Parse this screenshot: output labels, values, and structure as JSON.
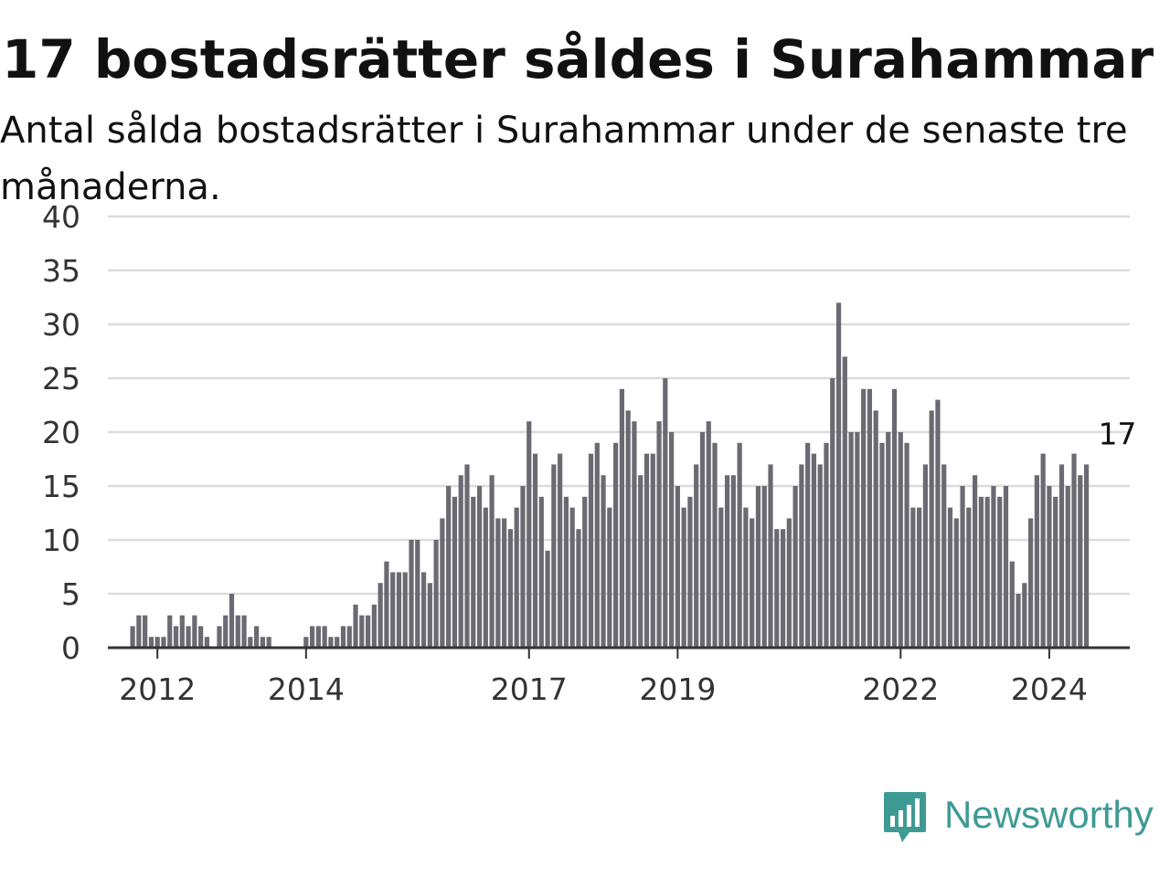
{
  "title": "17 bostadsrätter såldes i Surahammar",
  "subtitle": "Antal sålda bostadsrätter i Surahammar under de senaste tre månaderna.",
  "brand": {
    "name": "Newsworthy",
    "icon": "newsworthy-logo-icon",
    "color": "#3f9a94"
  },
  "chart_data": {
    "type": "bar",
    "xlabel": "",
    "ylabel": "",
    "ylim": [
      0,
      40
    ],
    "yticks": [
      0,
      5,
      10,
      15,
      20,
      25,
      30,
      35,
      40
    ],
    "xticks": [
      {
        "label": "2012",
        "date": "2012-01"
      },
      {
        "label": "2014",
        "date": "2014-01"
      },
      {
        "label": "2017",
        "date": "2017-01"
      },
      {
        "label": "2019",
        "date": "2019-01"
      },
      {
        "label": "2022",
        "date": "2022-01"
      },
      {
        "label": "2024",
        "date": "2024-01"
      }
    ],
    "grid": true,
    "bar_color": "#6b6a72",
    "highlight_color": "#17a39a",
    "x_start": "2011-05",
    "x_end": "2025-02",
    "start_month": "2011-09",
    "values": [
      2,
      3,
      3,
      1,
      1,
      1,
      3,
      2,
      3,
      2,
      3,
      2,
      1,
      0,
      2,
      3,
      5,
      3,
      3,
      1,
      2,
      1,
      1,
      0,
      0,
      0,
      0,
      0,
      1,
      2,
      2,
      2,
      1,
      1,
      2,
      2,
      4,
      3,
      3,
      4,
      6,
      8,
      7,
      7,
      7,
      10,
      10,
      7,
      6,
      10,
      12,
      15,
      14,
      16,
      17,
      14,
      15,
      13,
      16,
      12,
      12,
      11,
      13,
      15,
      21,
      18,
      14,
      9,
      17,
      18,
      14,
      13,
      11,
      14,
      18,
      19,
      16,
      13,
      19,
      24,
      22,
      21,
      16,
      18,
      18,
      21,
      25,
      20,
      15,
      13,
      14,
      17,
      20,
      21,
      19,
      13,
      16,
      16,
      19,
      13,
      12,
      15,
      15,
      17,
      11,
      11,
      12,
      15,
      17,
      19,
      18,
      17,
      19,
      25,
      32,
      27,
      20,
      20,
      24,
      24,
      22,
      19,
      20,
      24,
      20,
      19,
      13,
      13,
      17,
      22,
      23,
      17,
      13,
      12,
      15,
      13,
      16,
      14,
      14,
      15,
      14,
      15,
      8,
      5,
      6,
      12,
      16,
      18,
      15,
      14,
      17,
      15,
      18,
      16,
      17
    ],
    "highlight": {
      "date": "2024-12",
      "value": 17,
      "label": "17"
    }
  }
}
